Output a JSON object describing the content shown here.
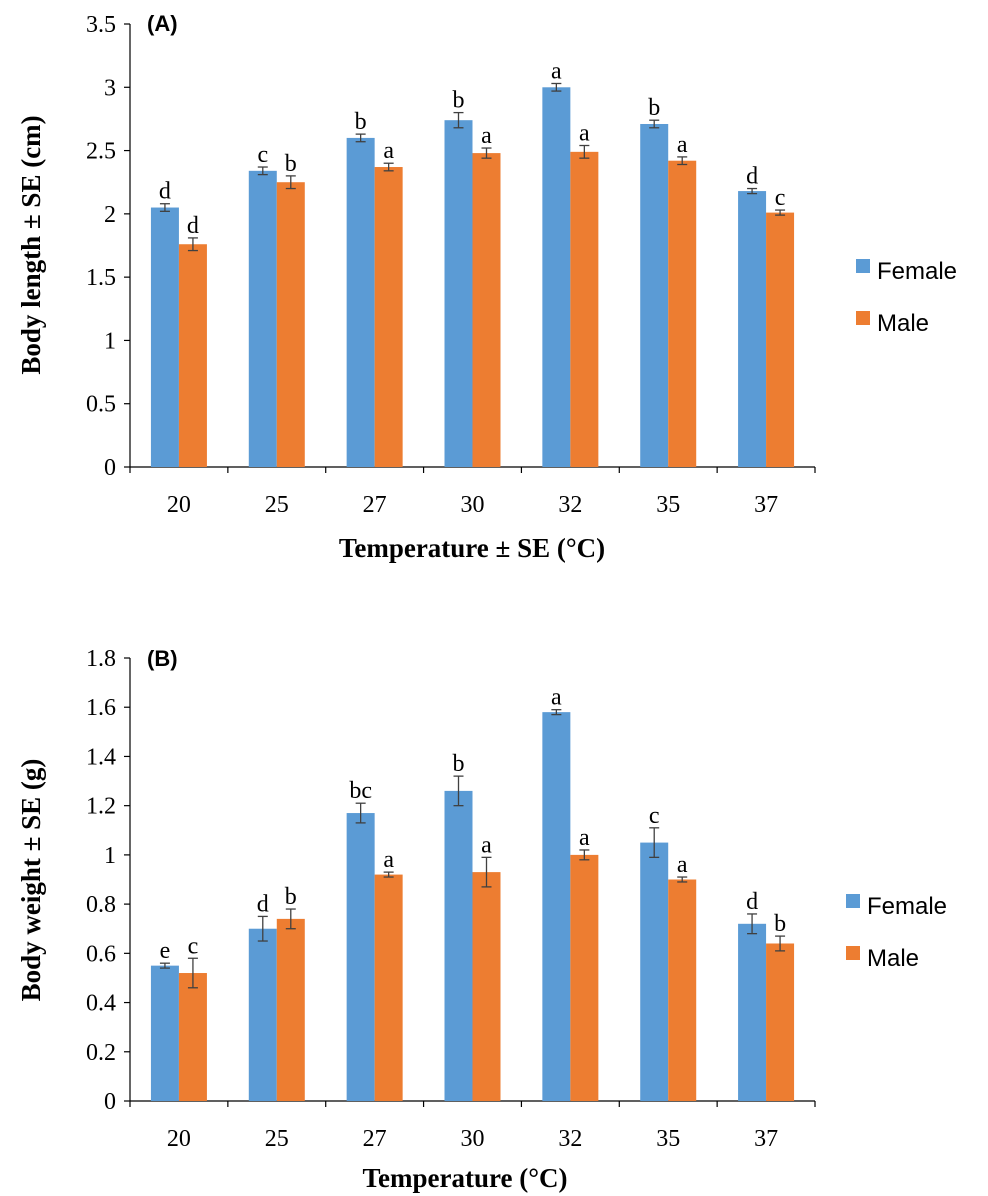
{
  "colors": {
    "female": "#5b9bd5",
    "male": "#ed7d31",
    "axis": "#000000",
    "errorbar": "#404040"
  },
  "chart_data": [
    {
      "type": "bar",
      "panel_label": "(A)",
      "categories": [
        "20",
        "25",
        "27",
        "30",
        "32",
        "35",
        "37"
      ],
      "xlabel": "Temperature ± SE (°C)",
      "ylabel": "Body length ± SE (cm)",
      "ylim": [
        0,
        3.5
      ],
      "yticks": [
        0,
        0.5,
        1,
        1.5,
        2,
        2.5,
        3,
        3.5
      ],
      "ytick_labels": [
        "0",
        "0.5",
        "1",
        "1.5",
        "2",
        "2.5",
        "3",
        "3.5"
      ],
      "legend_position": "right",
      "grid": false,
      "series": [
        {
          "name": "Female",
          "values": [
            2.05,
            2.34,
            2.6,
            2.74,
            3.0,
            2.71,
            2.18
          ],
          "errors": [
            0.03,
            0.03,
            0.03,
            0.06,
            0.03,
            0.03,
            0.02
          ],
          "labels": [
            "d",
            "c",
            "b",
            "b",
            "a",
            "b",
            "d"
          ]
        },
        {
          "name": "Male",
          "values": [
            1.76,
            2.25,
            2.37,
            2.48,
            2.49,
            2.42,
            2.01
          ],
          "errors": [
            0.05,
            0.05,
            0.03,
            0.04,
            0.05,
            0.03,
            0.02
          ],
          "labels": [
            "d",
            "b",
            "a",
            "a",
            "a",
            "a",
            "c"
          ]
        }
      ]
    },
    {
      "type": "bar",
      "panel_label": "(B)",
      "categories": [
        "20",
        "25",
        "27",
        "30",
        "32",
        "35",
        "37"
      ],
      "xlabel": "Temperature (°C)",
      "ylabel": "Body weight ± SE (g)",
      "ylim": [
        0,
        1.8
      ],
      "yticks": [
        0,
        0.2,
        0.4,
        0.6,
        0.8,
        1,
        1.2,
        1.4,
        1.6,
        1.8
      ],
      "ytick_labels": [
        "0",
        "0.2",
        "0.4",
        "0.6",
        "0.8",
        "1",
        "1.2",
        "1.4",
        "1.6",
        "1.8"
      ],
      "legend_position": "right",
      "grid": false,
      "series": [
        {
          "name": "Female",
          "values": [
            0.55,
            0.7,
            1.17,
            1.26,
            1.58,
            1.05,
            0.72
          ],
          "errors": [
            0.01,
            0.05,
            0.04,
            0.06,
            0.01,
            0.06,
            0.04
          ],
          "labels": [
            "e",
            "d",
            "bc",
            "b",
            "a",
            "c",
            "d"
          ]
        },
        {
          "name": "Male",
          "values": [
            0.52,
            0.74,
            0.92,
            0.93,
            1.0,
            0.9,
            0.64
          ],
          "errors": [
            0.06,
            0.04,
            0.01,
            0.06,
            0.02,
            0.01,
            0.03
          ],
          "labels": [
            "c",
            "b",
            "a",
            "a",
            "a",
            "a",
            "b"
          ]
        }
      ]
    }
  ]
}
